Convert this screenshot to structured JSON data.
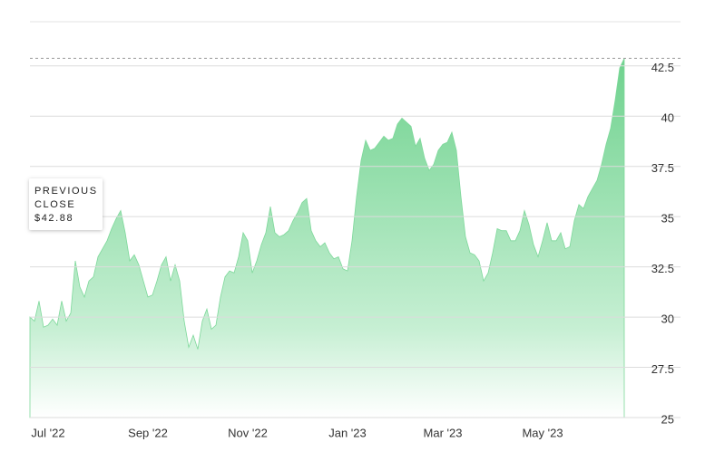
{
  "chart_data": {
    "type": "area",
    "categories": [
      null,
      null,
      null,
      null,
      "Jul '22",
      null,
      null,
      null,
      null,
      null,
      null,
      null,
      null,
      null,
      null,
      null,
      null,
      null,
      null,
      null,
      null,
      null,
      null,
      null,
      null,
      null,
      "Sep '22",
      null,
      null,
      null,
      null,
      null,
      null,
      null,
      null,
      null,
      null,
      null,
      null,
      null,
      null,
      null,
      null,
      null,
      null,
      null,
      null,
      null,
      "Nov '22",
      null,
      null,
      null,
      null,
      null,
      null,
      null,
      null,
      null,
      null,
      null,
      null,
      null,
      null,
      null,
      null,
      null,
      null,
      null,
      null,
      null,
      "Jan '23",
      null,
      null,
      null,
      null,
      null,
      null,
      null,
      null,
      null,
      null,
      null,
      null,
      null,
      null,
      null,
      null,
      null,
      null,
      null,
      null,
      "Mar '23",
      null,
      null,
      null,
      null,
      null,
      null,
      null,
      null,
      null,
      null,
      null,
      null,
      null,
      null,
      null,
      null,
      null,
      null,
      null,
      null,
      null,
      "May '23",
      null,
      null,
      null,
      null,
      null,
      null,
      null,
      null,
      null,
      null,
      null,
      null,
      null,
      null,
      null,
      null,
      null,
      null
    ],
    "values": [
      30.0,
      29.8,
      30.8,
      29.5,
      29.6,
      29.9,
      29.6,
      30.8,
      29.8,
      30.2,
      32.8,
      31.5,
      31.0,
      31.8,
      32.0,
      33.0,
      33.4,
      33.8,
      34.4,
      34.9,
      35.3,
      34.2,
      32.8,
      33.1,
      32.6,
      31.8,
      31.0,
      31.1,
      31.8,
      32.6,
      33.0,
      31.8,
      32.6,
      31.8,
      29.8,
      28.5,
      29.1,
      28.4,
      29.8,
      30.4,
      29.4,
      29.6,
      31.0,
      32.0,
      32.3,
      32.2,
      33.0,
      34.2,
      33.8,
      32.2,
      32.8,
      33.6,
      34.2,
      35.5,
      34.2,
      34.0,
      34.1,
      34.3,
      34.8,
      35.2,
      35.7,
      35.9,
      34.3,
      33.8,
      33.5,
      33.7,
      33.2,
      32.9,
      33.0,
      32.4,
      32.3,
      33.8,
      36.0,
      37.8,
      38.8,
      38.3,
      38.4,
      38.7,
      39.0,
      38.8,
      38.9,
      39.6,
      39.9,
      39.7,
      39.5,
      38.5,
      38.9,
      37.9,
      37.3,
      37.6,
      38.3,
      38.6,
      38.7,
      39.2,
      38.3,
      36.0,
      34.0,
      33.2,
      33.1,
      32.8,
      31.8,
      32.2,
      33.2,
      34.4,
      34.3,
      34.3,
      33.8,
      33.8,
      34.3,
      35.3,
      34.6,
      33.6,
      33.0,
      33.8,
      34.7,
      33.8,
      33.8,
      34.2,
      33.4,
      33.5,
      34.8,
      35.6,
      35.4,
      36.0,
      36.4,
      36.8,
      37.6,
      38.6,
      39.4,
      40.8,
      42.4,
      42.88
    ],
    "color": "#7dd89a",
    "ylim": [
      25,
      44.7
    ],
    "yticks": [
      25,
      27.5,
      30,
      32.5,
      35,
      37.5,
      40,
      42.5
    ],
    "grid": true,
    "previous_close": {
      "label": [
        "PREVIOUS",
        "CLOSE"
      ],
      "value": 42.88,
      "value_label": "$42.88"
    }
  }
}
